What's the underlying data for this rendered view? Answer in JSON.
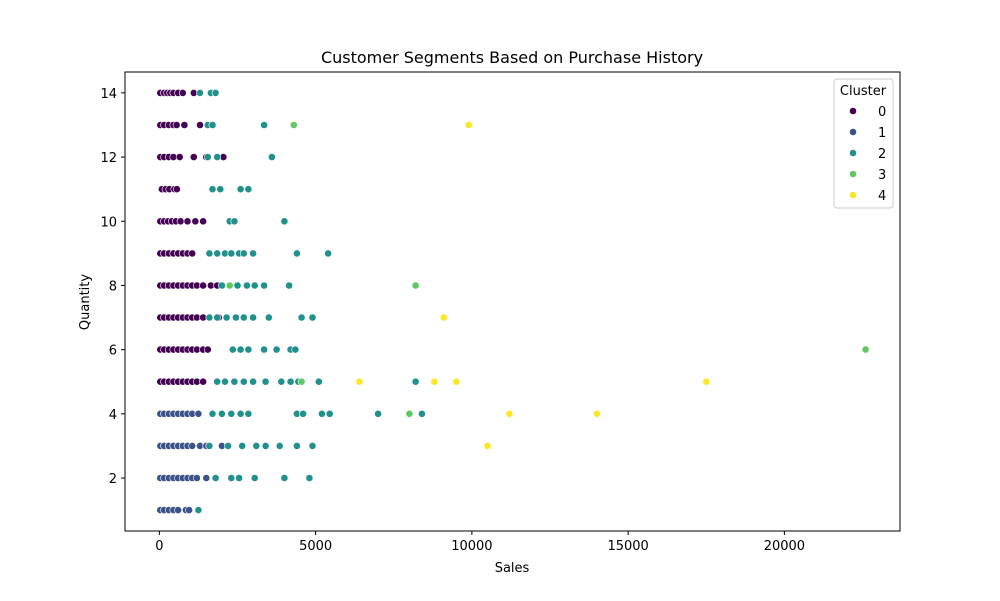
{
  "chart_data": {
    "type": "scatter",
    "title": "Customer Segments Based on Purchase History",
    "xlabel": "Sales",
    "ylabel": "Quantity",
    "xlim": [
      -1100,
      23700
    ],
    "ylim": [
      0.35,
      14.65
    ],
    "xticks": [
      0,
      5000,
      10000,
      15000,
      20000
    ],
    "yticks": [
      2,
      4,
      6,
      8,
      10,
      12,
      14
    ],
    "legend": {
      "title": "Cluster",
      "position": "top-right"
    },
    "series": [
      {
        "name": "0",
        "color": "#440154",
        "points": [
          [
            30,
            14
          ],
          [
            150,
            14
          ],
          [
            250,
            14
          ],
          [
            350,
            14
          ],
          [
            450,
            14
          ],
          [
            600,
            14
          ],
          [
            750,
            14
          ],
          [
            1100,
            14
          ],
          [
            30,
            13
          ],
          [
            150,
            13
          ],
          [
            300,
            13
          ],
          [
            450,
            13
          ],
          [
            550,
            13
          ],
          [
            800,
            13
          ],
          [
            1300,
            13
          ],
          [
            30,
            12
          ],
          [
            150,
            12
          ],
          [
            300,
            12
          ],
          [
            450,
            12
          ],
          [
            650,
            12
          ],
          [
            1100,
            12
          ],
          [
            1500,
            12
          ],
          [
            2050,
            12
          ],
          [
            80,
            11
          ],
          [
            200,
            11
          ],
          [
            320,
            11
          ],
          [
            480,
            11
          ],
          [
            560,
            11
          ],
          [
            30,
            10
          ],
          [
            150,
            10
          ],
          [
            280,
            10
          ],
          [
            400,
            10
          ],
          [
            530,
            10
          ],
          [
            680,
            10
          ],
          [
            900,
            10
          ],
          [
            1150,
            10
          ],
          [
            1400,
            10
          ],
          [
            30,
            9
          ],
          [
            150,
            9
          ],
          [
            300,
            9
          ],
          [
            450,
            9
          ],
          [
            600,
            9
          ],
          [
            750,
            9
          ],
          [
            900,
            9
          ],
          [
            1050,
            9
          ],
          [
            30,
            8
          ],
          [
            150,
            8
          ],
          [
            300,
            8
          ],
          [
            450,
            8
          ],
          [
            600,
            8
          ],
          [
            750,
            8
          ],
          [
            900,
            8
          ],
          [
            1050,
            8
          ],
          [
            1200,
            8
          ],
          [
            1400,
            8
          ],
          [
            1650,
            8
          ],
          [
            1850,
            8
          ],
          [
            30,
            7
          ],
          [
            150,
            7
          ],
          [
            300,
            7
          ],
          [
            450,
            7
          ],
          [
            600,
            7
          ],
          [
            750,
            7
          ],
          [
            900,
            7
          ],
          [
            1050,
            7
          ],
          [
            1200,
            7
          ],
          [
            1400,
            7
          ],
          [
            1900,
            7
          ],
          [
            30,
            6
          ],
          [
            150,
            6
          ],
          [
            300,
            6
          ],
          [
            450,
            6
          ],
          [
            600,
            6
          ],
          [
            750,
            6
          ],
          [
            900,
            6
          ],
          [
            1050,
            6
          ],
          [
            1200,
            6
          ],
          [
            1400,
            6
          ],
          [
            1550,
            6
          ],
          [
            30,
            5
          ],
          [
            150,
            5
          ],
          [
            300,
            5
          ],
          [
            450,
            5
          ],
          [
            600,
            5
          ],
          [
            750,
            5
          ],
          [
            900,
            5
          ],
          [
            1050,
            5
          ],
          [
            1200,
            5
          ],
          [
            1400,
            5
          ]
        ]
      },
      {
        "name": "1",
        "color": "#3b528b",
        "points": [
          [
            30,
            4
          ],
          [
            150,
            4
          ],
          [
            300,
            4
          ],
          [
            450,
            4
          ],
          [
            600,
            4
          ],
          [
            750,
            4
          ],
          [
            900,
            4
          ],
          [
            1050,
            4
          ],
          [
            1250,
            4
          ],
          [
            30,
            3
          ],
          [
            150,
            3
          ],
          [
            300,
            3
          ],
          [
            450,
            3
          ],
          [
            600,
            3
          ],
          [
            750,
            3
          ],
          [
            900,
            3
          ],
          [
            1050,
            3
          ],
          [
            1300,
            3
          ],
          [
            1500,
            3
          ],
          [
            2000,
            3
          ],
          [
            2650,
            3
          ],
          [
            30,
            2
          ],
          [
            150,
            2
          ],
          [
            300,
            2
          ],
          [
            450,
            2
          ],
          [
            600,
            2
          ],
          [
            750,
            2
          ],
          [
            900,
            2
          ],
          [
            1050,
            2
          ],
          [
            1200,
            2
          ],
          [
            1500,
            2
          ],
          [
            30,
            1
          ],
          [
            150,
            1
          ],
          [
            300,
            1
          ],
          [
            450,
            1
          ],
          [
            600,
            1
          ],
          [
            850,
            1
          ],
          [
            950,
            1
          ]
        ]
      },
      {
        "name": "2",
        "color": "#21918c",
        "points": [
          [
            1300,
            14
          ],
          [
            1650,
            14
          ],
          [
            1800,
            14
          ],
          [
            1550,
            13
          ],
          [
            1700,
            13
          ],
          [
            3350,
            13
          ],
          [
            1550,
            12
          ],
          [
            1850,
            12
          ],
          [
            3600,
            12
          ],
          [
            1700,
            11
          ],
          [
            1950,
            11
          ],
          [
            2600,
            11
          ],
          [
            2850,
            11
          ],
          [
            2250,
            10
          ],
          [
            2400,
            10
          ],
          [
            4000,
            10
          ],
          [
            1600,
            9
          ],
          [
            1850,
            9
          ],
          [
            2100,
            9
          ],
          [
            2300,
            9
          ],
          [
            2550,
            9
          ],
          [
            2700,
            9
          ],
          [
            3000,
            9
          ],
          [
            4400,
            9
          ],
          [
            5400,
            9
          ],
          [
            2000,
            8
          ],
          [
            2250,
            8
          ],
          [
            2500,
            8
          ],
          [
            2800,
            8
          ],
          [
            3050,
            8
          ],
          [
            3350,
            8
          ],
          [
            4150,
            8
          ],
          [
            1600,
            7
          ],
          [
            1850,
            7
          ],
          [
            2150,
            7
          ],
          [
            2450,
            7
          ],
          [
            2700,
            7
          ],
          [
            3000,
            7
          ],
          [
            3500,
            7
          ],
          [
            4550,
            7
          ],
          [
            4900,
            7
          ],
          [
            2350,
            6
          ],
          [
            2600,
            6
          ],
          [
            2850,
            6
          ],
          [
            3350,
            6
          ],
          [
            3750,
            6
          ],
          [
            4200,
            6
          ],
          [
            4350,
            6
          ],
          [
            1850,
            5
          ],
          [
            2100,
            5
          ],
          [
            2400,
            5
          ],
          [
            2700,
            5
          ],
          [
            3000,
            5
          ],
          [
            3400,
            5
          ],
          [
            3900,
            5
          ],
          [
            4200,
            5
          ],
          [
            4450,
            5
          ],
          [
            5100,
            5
          ],
          [
            8200,
            5
          ],
          [
            1700,
            4
          ],
          [
            2000,
            4
          ],
          [
            2300,
            4
          ],
          [
            2600,
            4
          ],
          [
            2850,
            4
          ],
          [
            4400,
            4
          ],
          [
            4600,
            4
          ],
          [
            5200,
            4
          ],
          [
            5450,
            4
          ],
          [
            7000,
            4
          ],
          [
            8400,
            4
          ],
          [
            1600,
            3
          ],
          [
            2200,
            3
          ],
          [
            2650,
            3
          ],
          [
            3100,
            3
          ],
          [
            3400,
            3
          ],
          [
            3850,
            3
          ],
          [
            4400,
            3
          ],
          [
            4900,
            3
          ],
          [
            1800,
            2
          ],
          [
            2300,
            2
          ],
          [
            2550,
            2
          ],
          [
            3050,
            2
          ],
          [
            4000,
            2
          ],
          [
            4800,
            2
          ],
          [
            1250,
            1
          ]
        ]
      },
      {
        "name": "3",
        "color": "#5ec962",
        "points": [
          [
            4300,
            13
          ],
          [
            2250,
            8
          ],
          [
            8200,
            8
          ],
          [
            4550,
            5
          ],
          [
            8000,
            4
          ],
          [
            22600,
            6
          ]
        ]
      },
      {
        "name": "4",
        "color": "#fde725",
        "points": [
          [
            9900,
            13
          ],
          [
            9100,
            7
          ],
          [
            6400,
            5
          ],
          [
            8800,
            5
          ],
          [
            9500,
            5
          ],
          [
            17500,
            5
          ],
          [
            11200,
            4
          ],
          [
            14000,
            4
          ],
          [
            10500,
            3
          ]
        ]
      }
    ]
  }
}
